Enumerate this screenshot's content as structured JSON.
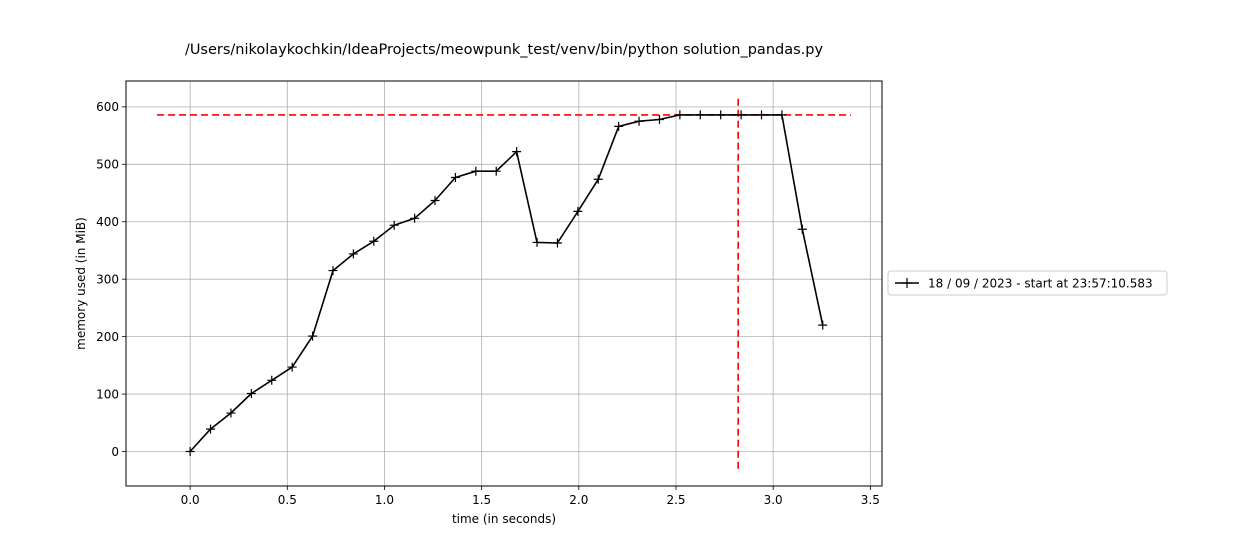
{
  "chart_data": {
    "type": "line",
    "title": "/Users/nikolaykochkin/IdeaProjects/meowpunk_test/venv/bin/python solution_pandas.py",
    "xlabel": "time (in seconds)",
    "ylabel": "memory used (in MiB)",
    "xlim": [
      -0.33,
      3.56
    ],
    "ylim": [
      -60,
      645
    ],
    "xticks": [
      0.0,
      0.5,
      1.0,
      1.5,
      2.0,
      2.5,
      3.0,
      3.5
    ],
    "xtick_labels": [
      "0.0",
      "0.5",
      "1.0",
      "1.5",
      "2.0",
      "2.5",
      "3.0",
      "3.5"
    ],
    "yticks": [
      0,
      100,
      200,
      300,
      400,
      500,
      600
    ],
    "ytick_labels": [
      "0",
      "100",
      "200",
      "300",
      "400",
      "500",
      "600"
    ],
    "grid": true,
    "legend_position": "outside-right",
    "series": [
      {
        "name": "18 / 09 / 2023 - start at 23:57:10.583",
        "color": "#000000",
        "marker": "plus",
        "x": [
          0.0,
          0.105,
          0.21,
          0.315,
          0.42,
          0.525,
          0.63,
          0.735,
          0.84,
          0.945,
          1.05,
          1.155,
          1.26,
          1.365,
          1.47,
          1.575,
          1.68,
          1.785,
          1.89,
          1.995,
          2.1,
          2.205,
          2.31,
          2.415,
          2.52,
          2.625,
          2.73,
          2.835,
          2.94,
          3.045,
          3.15,
          3.255
        ],
        "y": [
          0,
          39,
          67,
          101,
          124,
          147,
          201,
          315,
          344,
          366,
          394,
          406,
          437,
          477,
          488,
          488,
          522,
          364,
          363,
          418,
          474,
          566,
          575,
          578,
          586,
          586,
          586,
          586,
          586,
          586,
          387,
          220
        ]
      }
    ],
    "annotations": [
      {
        "type": "hline",
        "y": 586,
        "x_from": -0.17,
        "x_to": 3.4,
        "color": "#ff0000",
        "style": "dashed"
      },
      {
        "type": "vline",
        "x": 2.82,
        "y_from": -30,
        "y_to": 615,
        "color": "#ff0000",
        "style": "dashed"
      }
    ]
  }
}
